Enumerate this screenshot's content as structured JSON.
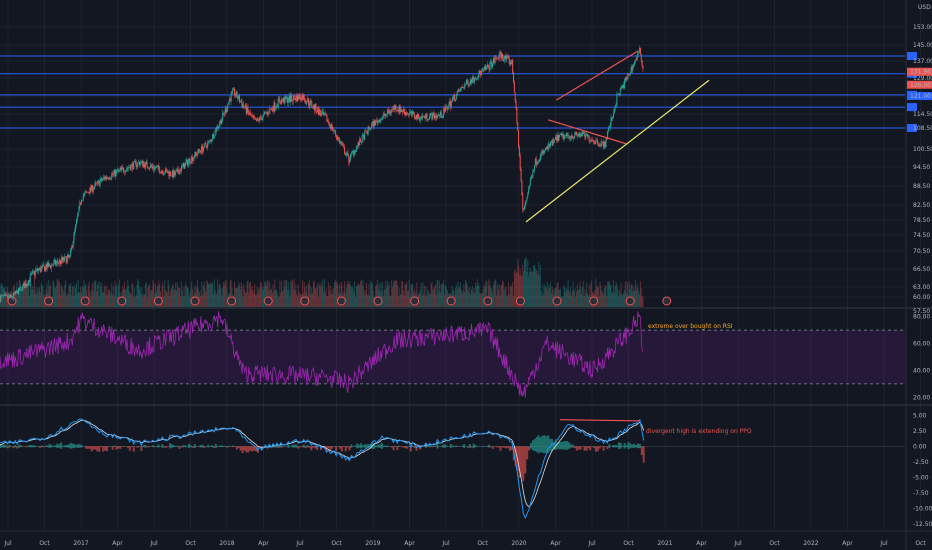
{
  "chart_data": [
    {
      "type": "candlestick",
      "pane": "price",
      "currency": "USD",
      "price_scale_labels": [
        "153.00",
        "145.00",
        "137.00",
        "129.00",
        "121.00",
        "114.50",
        "108.50",
        "100.50",
        "94.50",
        "88.50",
        "82.50",
        "78.50",
        "74.50",
        "70.50",
        "66.50",
        "63.00",
        "60.00",
        "57.50"
      ],
      "last_price_labels": [
        "131.96",
        "126.00",
        "121.00"
      ],
      "ylim": [
        57.5,
        153.0
      ],
      "horizontal_levels": [
        139.5,
        131.0,
        121.5,
        117.0,
        108.5
      ],
      "trendline_support": {
        "from": [
          "2020-03-23",
          78.0
        ],
        "to": [
          "2021-07-15",
          128.0
        ]
      },
      "channel_upper": {
        "from": [
          "2020-06-10",
          119.5
        ],
        "to": [
          "2021-01-10",
          142.0
        ]
      },
      "wedge_upper": {
        "from": [
          "2020-05-20",
          112.0
        ],
        "to": [
          "2020-12-10",
          102.5
        ]
      },
      "key_points": [
        {
          "x": "2016-07",
          "y": 60
        },
        {
          "x": "2016-09",
          "y": 66
        },
        {
          "x": "2016-11",
          "y": 68
        },
        {
          "x": "2016-12",
          "y": 69
        },
        {
          "x": "2017-01",
          "y": 85
        },
        {
          "x": "2017-03",
          "y": 91
        },
        {
          "x": "2017-06",
          "y": 96
        },
        {
          "x": "2017-09",
          "y": 92
        },
        {
          "x": "2017-12",
          "y": 103
        },
        {
          "x": "2018-01",
          "y": 112
        },
        {
          "x": "2018-02",
          "y": 123
        },
        {
          "x": "2018-04",
          "y": 111
        },
        {
          "x": "2018-06",
          "y": 119
        },
        {
          "x": "2018-08",
          "y": 121
        },
        {
          "x": "2018-10",
          "y": 113
        },
        {
          "x": "2018-12",
          "y": 97
        },
        {
          "x": "2019-02",
          "y": 110
        },
        {
          "x": "2019-04",
          "y": 117
        },
        {
          "x": "2019-06",
          "y": 113
        },
        {
          "x": "2019-08",
          "y": 114
        },
        {
          "x": "2019-10",
          "y": 126
        },
        {
          "x": "2019-12",
          "y": 134
        },
        {
          "x": "2020-01",
          "y": 140
        },
        {
          "x": "2020-02",
          "y": 136
        },
        {
          "x": "2020-03",
          "y": 80
        },
        {
          "x": "2020-04",
          "y": 96
        },
        {
          "x": "2020-06",
          "y": 105
        },
        {
          "x": "2020-08",
          "y": 106
        },
        {
          "x": "2020-10",
          "y": 102
        },
        {
          "x": "2020-11",
          "y": 120
        },
        {
          "x": "2020-12",
          "y": 130
        },
        {
          "x": "2021-01",
          "y": 142
        },
        {
          "x": "2021-01-25",
          "y": 132
        }
      ]
    },
    {
      "type": "histogram",
      "pane": "volume",
      "description_in_chart": ""
    },
    {
      "type": "line",
      "pane": "rsi",
      "scale_labels": [
        "80.00",
        "60.00",
        "40.00",
        "20.00"
      ],
      "ylim": [
        15,
        85
      ],
      "band": [
        70,
        30
      ],
      "key_points": [
        {
          "x": "2016-07",
          "y": 48
        },
        {
          "x": "2016-12",
          "y": 62
        },
        {
          "x": "2017-01",
          "y": 78
        },
        {
          "x": "2017-06",
          "y": 55
        },
        {
          "x": "2018-01",
          "y": 80
        },
        {
          "x": "2018-03",
          "y": 38
        },
        {
          "x": "2018-10",
          "y": 35
        },
        {
          "x": "2018-12",
          "y": 30
        },
        {
          "x": "2019-04",
          "y": 62
        },
        {
          "x": "2019-12",
          "y": 70
        },
        {
          "x": "2020-03",
          "y": 22
        },
        {
          "x": "2020-05",
          "y": 60
        },
        {
          "x": "2020-09",
          "y": 40
        },
        {
          "x": "2020-12",
          "y": 68
        },
        {
          "x": "2021-01",
          "y": 80
        },
        {
          "x": "2021-01-25",
          "y": 45
        }
      ],
      "annotation": "extreme over bought on RSI"
    },
    {
      "type": "line",
      "pane": "ppo",
      "scale_labels": [
        "5.00",
        "2.50",
        "0.00",
        "-2.50",
        "-5.00",
        "-7.50",
        "-10.00",
        "-12.50"
      ],
      "ylim": [
        -13.5,
        6.5
      ],
      "series": [
        {
          "values_key_points": [
            {
              "x": "2016-07",
              "y": 0.5
            },
            {
              "x": "2016-10",
              "y": 1.5
            },
            {
              "x": "2017-01",
              "y": 4.5
            },
            {
              "x": "2017-03",
              "y": 2.0
            },
            {
              "x": "2017-06",
              "y": 0.5
            },
            {
              "x": "2017-12",
              "y": 2.5
            },
            {
              "x": "2018-02",
              "y": 3.0
            },
            {
              "x": "2018-04",
              "y": -0.5
            },
            {
              "x": "2018-08",
              "y": 1.0
            },
            {
              "x": "2018-12",
              "y": -2.0
            },
            {
              "x": "2019-03",
              "y": 1.5
            },
            {
              "x": "2019-06",
              "y": 0.0
            },
            {
              "x": "2019-12",
              "y": 2.5
            },
            {
              "x": "2020-02",
              "y": 1.0
            },
            {
              "x": "2020-03-20",
              "y": -12.0
            },
            {
              "x": "2020-05",
              "y": -1.0
            },
            {
              "x": "2020-07",
              "y": 3.5
            },
            {
              "x": "2020-10",
              "y": 0.5
            },
            {
              "x": "2020-12",
              "y": 3.0
            },
            {
              "x": "2021-01",
              "y": 4.0
            },
            {
              "x": "2021-01-25",
              "y": 1.0
            }
          ]
        }
      ],
      "divergence_line": {
        "from": [
          "2020-06-20",
          4.3
        ],
        "to": [
          "2021-01-15",
          4.1
        ]
      },
      "annotation": "divergent high is extending on PPO"
    }
  ],
  "time_axis_labels": [
    "Jul",
    "Oct",
    "2017",
    "Apr",
    "Jul",
    "Oct",
    "2018",
    "Apr",
    "Jul",
    "Oct",
    "2019",
    "Apr",
    "Jul",
    "Oct",
    "2020",
    "Apr",
    "Jul",
    "Oct",
    "2021",
    "Apr",
    "Jul",
    "Oct",
    "2022",
    "Apr",
    "Jul",
    "Oct"
  ],
  "colors": {
    "background": "#131722",
    "up": "#26a69a",
    "down": "#ef5350",
    "horizontal_level": "#2962ff",
    "trendline": "#e8e76a",
    "channel": "#ef5350",
    "rsi": "#9c27b0",
    "rsi_band": "#7b1fa2",
    "ppo_fast": "#2196f3",
    "ppo_slow": "#e0e0e0",
    "annotation_rsi": "#f5a623",
    "annotation_ppo": "#ef5350"
  }
}
